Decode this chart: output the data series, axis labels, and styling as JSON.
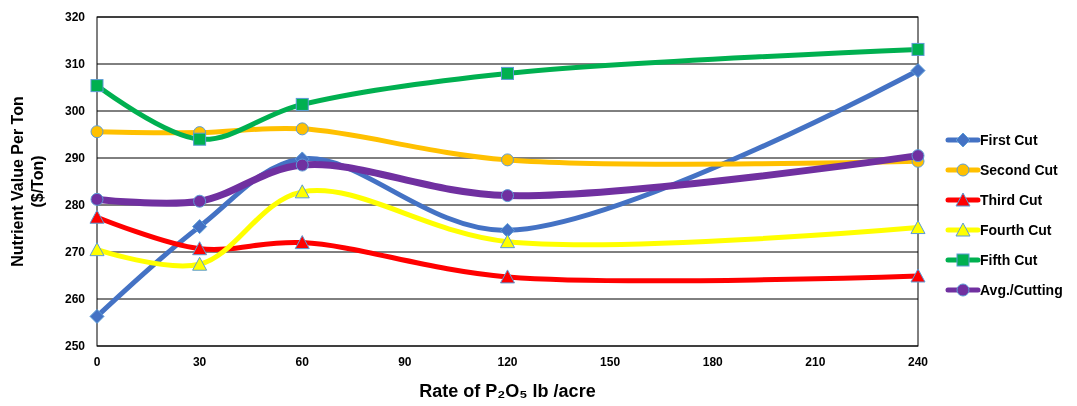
{
  "chart_data": {
    "type": "line",
    "xlabel": "Rate of P₂O₅ lb /acre",
    "ylabel": "Nutrient Value Per Ton\n($/Ton)",
    "x": [
      0,
      30,
      60,
      120,
      240
    ],
    "xlim": [
      0,
      240
    ],
    "xticks": [
      0,
      30,
      60,
      90,
      120,
      150,
      180,
      210,
      240
    ],
    "ylim": [
      250,
      320
    ],
    "yticks": [
      250,
      260,
      270,
      280,
      290,
      300,
      310,
      320
    ],
    "grid": "y",
    "legend": "right",
    "series": [
      {
        "name": "First Cut",
        "color": "#4472c4",
        "marker": "diamond",
        "values": [
          256.3,
          275.4,
          289.8,
          274.6,
          308.6
        ]
      },
      {
        "name": "Second Cut",
        "color": "#ffc000",
        "marker": "circle",
        "values": [
          295.6,
          295.4,
          296.2,
          289.6,
          289.3
        ]
      },
      {
        "name": "Third Cut",
        "color": "#ff0000",
        "marker": "triangle",
        "values": [
          277.4,
          270.7,
          272,
          264.7,
          264.9
        ]
      },
      {
        "name": "Fourth Cut",
        "color": "#ffff00",
        "marker": "triangle",
        "values": [
          270.5,
          267.4,
          282.8,
          272.2,
          275.2
        ]
      },
      {
        "name": "Fifth Cut",
        "color": "#00b050",
        "marker": "square",
        "values": [
          305.4,
          294,
          301.4,
          308,
          313.1
        ]
      },
      {
        "name": "Avg./Cutting",
        "color": "#7030a0",
        "marker": "circle",
        "values": [
          281.2,
          280.8,
          288.5,
          282,
          290.5
        ]
      }
    ]
  }
}
